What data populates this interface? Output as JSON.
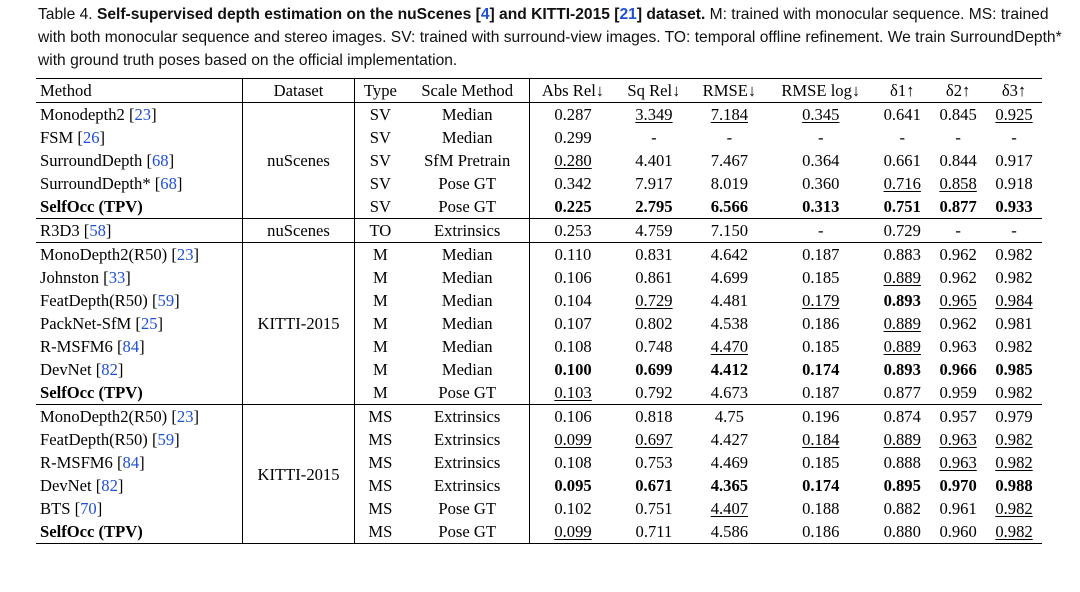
{
  "caption": {
    "prefix": "Table 4. ",
    "bold_a": "Self-supervised depth estimation on the nuScenes [",
    "ref1": "4",
    "bold_b": "] and KITTI-2015 [",
    "ref2": "21",
    "bold_c": "] dataset.",
    "rest": " M: trained with monocular sequence. MS: trained with both monocular sequence and stereo images. SV: trained with surround-view images. TO: temporal offline refinement. We train SurroundDepth* with ground truth poses based on the official implementation."
  },
  "headers": [
    "Method",
    "Dataset",
    "Type",
    "Scale Method",
    "Abs Rel↓",
    "Sq Rel↓",
    "RMSE↓",
    "RMSE log↓",
    "δ1↑",
    "δ2↑",
    "δ3↑"
  ],
  "groups": [
    {
      "dataset": "nuScenes",
      "rows": [
        {
          "name": "Monodepth2 ",
          "ref": "23",
          "type": "SV",
          "scale": "Median",
          "vals": [
            "0.287",
            "3.349",
            "7.184",
            "0.345",
            "0.641",
            "0.845",
            "0.925"
          ],
          "bold": [],
          "ul": [
            1,
            2,
            3,
            6
          ]
        },
        {
          "name": "FSM ",
          "ref": "26",
          "type": "SV",
          "scale": "Median",
          "vals": [
            "0.299",
            "-",
            "-",
            "-",
            "-",
            "-",
            "-"
          ],
          "bold": [],
          "ul": []
        },
        {
          "name": "SurroundDepth ",
          "ref": "68",
          "type": "SV",
          "scale": "SfM Pretrain",
          "vals": [
            "0.280",
            "4.401",
            "7.467",
            "0.364",
            "0.661",
            "0.844",
            "0.917"
          ],
          "bold": [],
          "ul": [
            0
          ]
        },
        {
          "name": "SurroundDepth* ",
          "ref": "68",
          "type": "SV",
          "scale": "Pose GT",
          "vals": [
            "0.342",
            "7.917",
            "8.019",
            "0.360",
            "0.716",
            "0.858",
            "0.918"
          ],
          "bold": [],
          "ul": [
            4,
            5
          ]
        },
        {
          "name": "SelfOcc (TPV)",
          "ref": "",
          "type": "SV",
          "scale": "Pose GT",
          "vals": [
            "0.225",
            "2.795",
            "6.566",
            "0.313",
            "0.751",
            "0.877",
            "0.933"
          ],
          "bold": [
            0,
            1,
            2,
            3,
            4,
            5,
            6
          ],
          "ul": [],
          "namebold": true
        }
      ]
    },
    {
      "dataset": "nuScenes",
      "rows": [
        {
          "name": "R3D3 ",
          "ref": "58",
          "type": "TO",
          "scale": "Extrinsics",
          "vals": [
            "0.253",
            "4.759",
            "7.150",
            "-",
            "0.729",
            "-",
            "-"
          ],
          "bold": [],
          "ul": []
        }
      ]
    },
    {
      "dataset": "KITTI-2015",
      "rows": [
        {
          "name": "MonoDepth2(R50) ",
          "ref": "23",
          "type": "M",
          "scale": "Median",
          "vals": [
            "0.110",
            "0.831",
            "4.642",
            "0.187",
            "0.883",
            "0.962",
            "0.982"
          ],
          "bold": [],
          "ul": []
        },
        {
          "name": "Johnston ",
          "ref": "33",
          "type": "M",
          "scale": "Median",
          "vals": [
            "0.106",
            "0.861",
            "4.699",
            "0.185",
            "0.889",
            "0.962",
            "0.982"
          ],
          "bold": [],
          "ul": [
            4
          ]
        },
        {
          "name": "FeatDepth(R50) ",
          "ref": "59",
          "type": "M",
          "scale": "Median",
          "vals": [
            "0.104",
            "0.729",
            "4.481",
            "0.179",
            "0.893",
            "0.965",
            "0.984"
          ],
          "bold": [
            4
          ],
          "ul": [
            1,
            3,
            5,
            6
          ]
        },
        {
          "name": "PackNet-SfM ",
          "ref": "25",
          "type": "M",
          "scale": "Median",
          "vals": [
            "0.107",
            "0.802",
            "4.538",
            "0.186",
            "0.889",
            "0.962",
            "0.981"
          ],
          "bold": [],
          "ul": [
            4
          ]
        },
        {
          "name": "R-MSFM6 ",
          "ref": "84",
          "type": "M",
          "scale": "Median",
          "vals": [
            "0.108",
            "0.748",
            "4.470",
            "0.185",
            "0.889",
            "0.963",
            "0.982"
          ],
          "bold": [],
          "ul": [
            2,
            4
          ]
        },
        {
          "name": "DevNet ",
          "ref": "82",
          "type": "M",
          "scale": "Median",
          "vals": [
            "0.100",
            "0.699",
            "4.412",
            "0.174",
            "0.893",
            "0.966",
            "0.985"
          ],
          "bold": [
            0,
            1,
            2,
            3,
            4,
            5,
            6
          ],
          "ul": []
        },
        {
          "name": "SelfOcc (TPV)",
          "ref": "",
          "type": "M",
          "scale": "Pose GT",
          "vals": [
            "0.103",
            "0.792",
            "4.673",
            "0.187",
            "0.877",
            "0.959",
            "0.982"
          ],
          "bold": [],
          "ul": [
            0
          ],
          "namebold": true
        }
      ]
    },
    {
      "dataset": "KITTI-2015",
      "rows": [
        {
          "name": "MonoDepth2(R50) ",
          "ref": "23",
          "type": "MS",
          "scale": "Extrinsics",
          "vals": [
            "0.106",
            "0.818",
            "4.75",
            "0.196",
            "0.874",
            "0.957",
            "0.979"
          ],
          "bold": [],
          "ul": []
        },
        {
          "name": "FeatDepth(R50) ",
          "ref": "59",
          "type": "MS",
          "scale": "Extrinsics",
          "vals": [
            "0.099",
            "0.697",
            "4.427",
            "0.184",
            "0.889",
            "0.963",
            "0.982"
          ],
          "bold": [],
          "ul": [
            0,
            1,
            3,
            4,
            5,
            6
          ]
        },
        {
          "name": "R-MSFM6 ",
          "ref": "84",
          "type": "MS",
          "scale": "Extrinsics",
          "vals": [
            "0.108",
            "0.753",
            "4.469",
            "0.185",
            "0.888",
            "0.963",
            "0.982"
          ],
          "bold": [],
          "ul": [
            5,
            6
          ]
        },
        {
          "name": "DevNet ",
          "ref": "82",
          "type": "MS",
          "scale": "Extrinsics",
          "vals": [
            "0.095",
            "0.671",
            "4.365",
            "0.174",
            "0.895",
            "0.970",
            "0.988"
          ],
          "bold": [
            0,
            1,
            2,
            3,
            4,
            5,
            6
          ],
          "ul": []
        },
        {
          "name": "BTS ",
          "ref": "70",
          "type": "MS",
          "scale": "Pose GT",
          "vals": [
            "0.102",
            "0.751",
            "4.407",
            "0.188",
            "0.882",
            "0.961",
            "0.982"
          ],
          "bold": [],
          "ul": [
            2,
            6
          ]
        },
        {
          "name": "SelfOcc (TPV)",
          "ref": "",
          "type": "MS",
          "scale": "Pose GT",
          "vals": [
            "0.099",
            "0.711",
            "4.586",
            "0.186",
            "0.880",
            "0.960",
            "0.982"
          ],
          "bold": [],
          "ul": [
            0,
            6
          ],
          "namebold": true
        }
      ]
    }
  ]
}
